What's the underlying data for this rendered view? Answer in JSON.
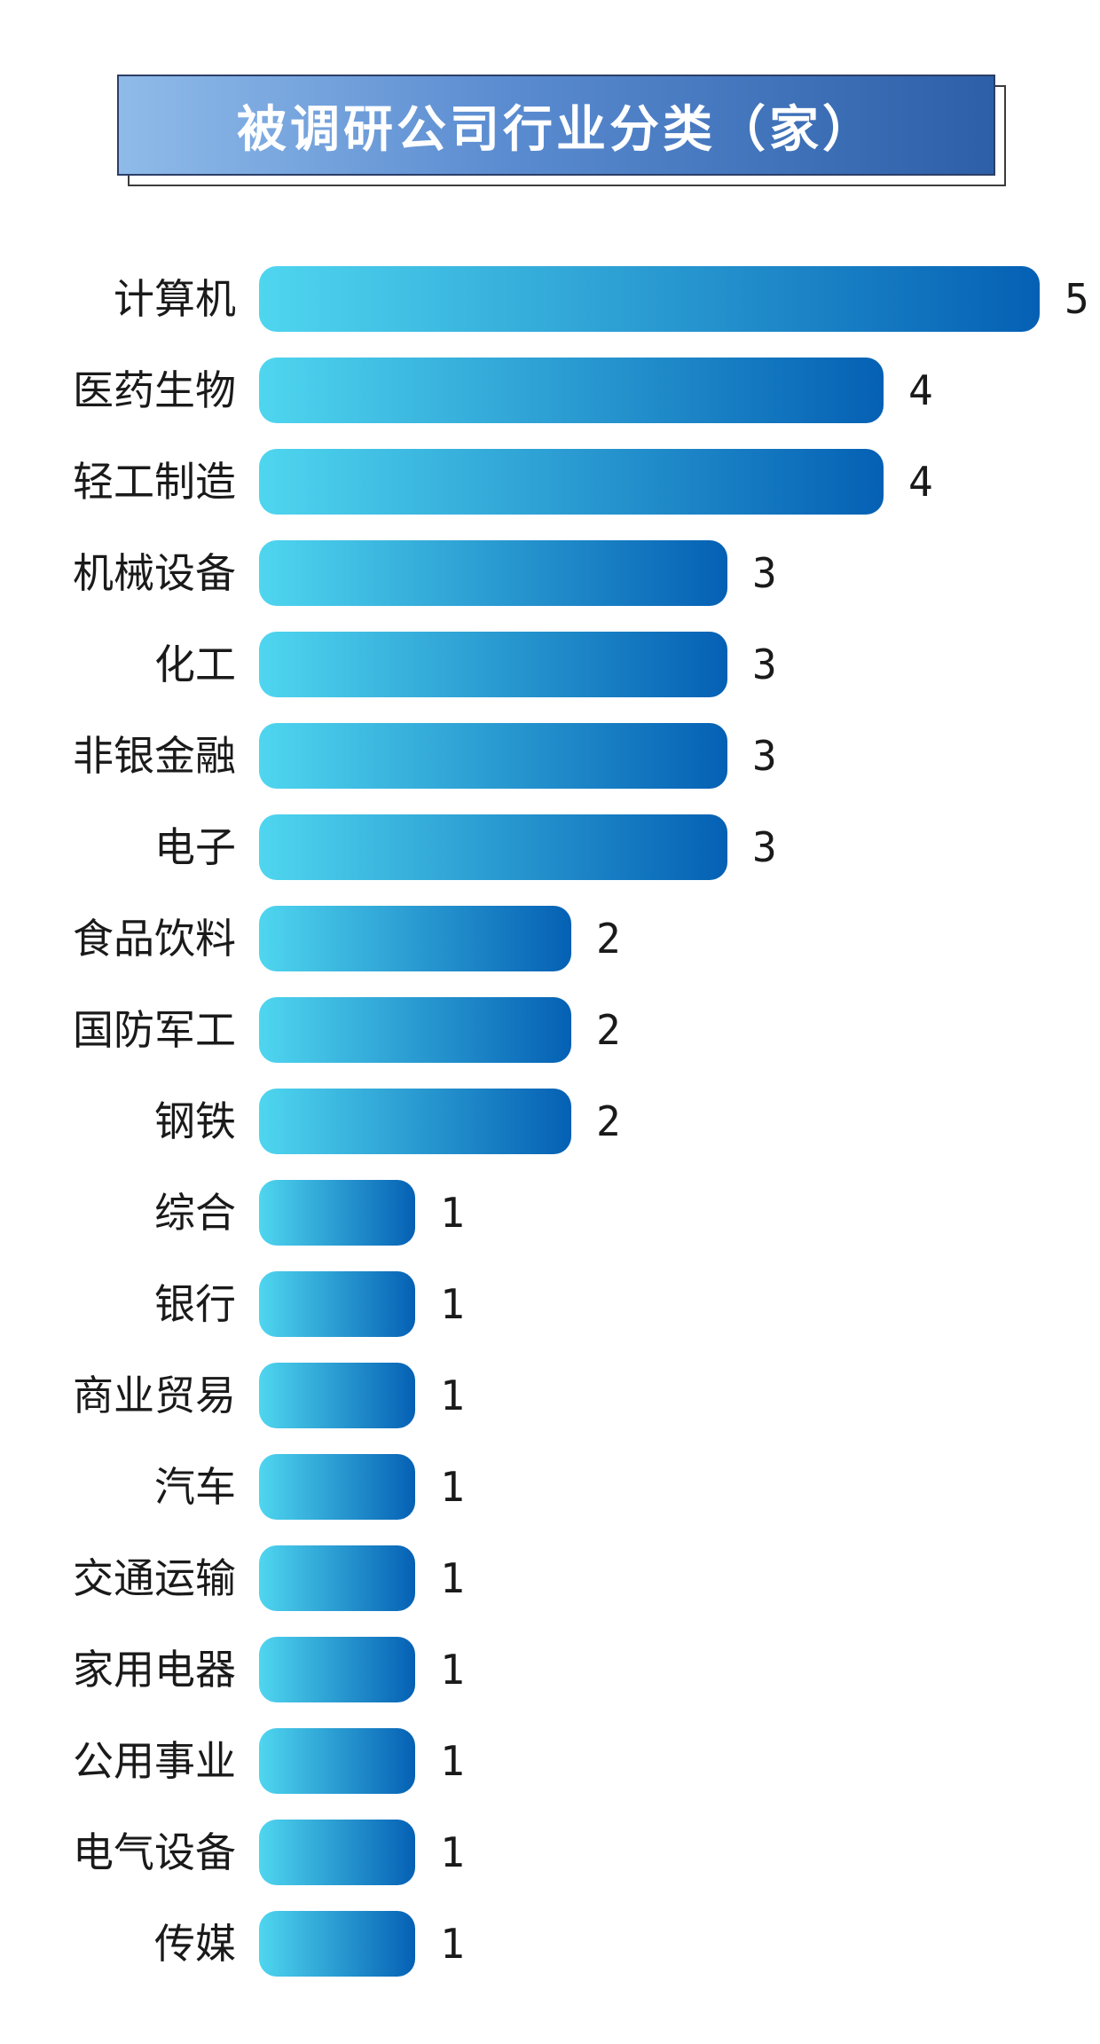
{
  "chart_data": {
    "type": "bar",
    "orientation": "horizontal",
    "title": "被调研公司行业分类（家）",
    "categories": [
      "计算机",
      "医药生物",
      "轻工制造",
      "机械设备",
      "化工",
      "非银金融",
      "电子",
      "食品饮料",
      "国防军工",
      "钢铁",
      "综合",
      "银行",
      "商业贸易",
      "汽车",
      "交通运输",
      "家用电器",
      "公用事业",
      "电气设备",
      "传媒"
    ],
    "values": [
      5,
      4,
      4,
      3,
      3,
      3,
      3,
      2,
      2,
      2,
      1,
      1,
      1,
      1,
      1,
      1,
      1,
      1,
      1
    ],
    "xlabel": "",
    "ylabel": "",
    "xlim": [
      0,
      5
    ],
    "grid": false,
    "legend": "none",
    "colors": {
      "bar_start": "#4fd6ef",
      "bar_end": "#0560b4",
      "title_bg_start": "#8fbbe9",
      "title_bg_end": "#2c5fa8"
    }
  }
}
